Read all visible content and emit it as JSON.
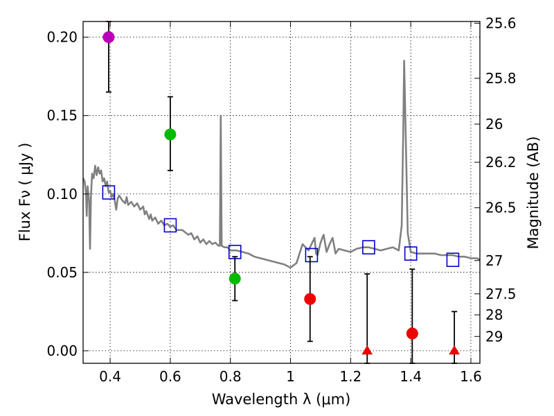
{
  "chart_data": {
    "type": "scatter",
    "title": "",
    "xlabel": "Wavelength  λ (μm)",
    "ylabel": "Flux  Fν ( μJy )",
    "y2label": "Magnitude (AB)",
    "xlim": [
      0.31,
      1.63
    ],
    "ylim": [
      -0.008,
      0.21
    ],
    "grid": true,
    "xticks": [
      0.4,
      0.6,
      0.8,
      1.0,
      1.2,
      1.4,
      1.6
    ],
    "xtick_labels": [
      "0.4",
      "0.6",
      "0.8",
      "1",
      "1.2",
      "1.4",
      "1.6"
    ],
    "yticks": [
      0.0,
      0.05,
      0.1,
      0.15,
      0.2
    ],
    "ytick_labels": [
      "0.00",
      "0.05",
      "0.10",
      "0.15",
      "0.20"
    ],
    "y2ticks": [
      25.6,
      25.8,
      26,
      26.2,
      26.5,
      27,
      27.5,
      28,
      29
    ],
    "y2tick_labels": [
      "25.6",
      "25.8",
      "26",
      "26.2",
      "26.5",
      "27",
      "27.5",
      "28",
      "29"
    ],
    "model_color": "#808080",
    "model_spectrum": [
      [
        0.31,
        0.11
      ],
      [
        0.315,
        0.108
      ],
      [
        0.32,
        0.1
      ],
      [
        0.322,
        0.086
      ],
      [
        0.325,
        0.105
      ],
      [
        0.33,
        0.095
      ],
      [
        0.333,
        0.065
      ],
      [
        0.336,
        0.098
      ],
      [
        0.34,
        0.113
      ],
      [
        0.345,
        0.11
      ],
      [
        0.35,
        0.118
      ],
      [
        0.355,
        0.112
      ],
      [
        0.36,
        0.117
      ],
      [
        0.365,
        0.113
      ],
      [
        0.37,
        0.115
      ],
      [
        0.375,
        0.108
      ],
      [
        0.38,
        0.11
      ],
      [
        0.385,
        0.105
      ],
      [
        0.39,
        0.108
      ],
      [
        0.395,
        0.101
      ],
      [
        0.4,
        0.102
      ],
      [
        0.405,
        0.098
      ],
      [
        0.41,
        0.1
      ],
      [
        0.415,
        0.096
      ],
      [
        0.42,
        0.09
      ],
      [
        0.425,
        0.097
      ],
      [
        0.43,
        0.099
      ],
      [
        0.44,
        0.096
      ],
      [
        0.45,
        0.094
      ],
      [
        0.455,
        0.098
      ],
      [
        0.46,
        0.093
      ],
      [
        0.47,
        0.095
      ],
      [
        0.48,
        0.092
      ],
      [
        0.49,
        0.094
      ],
      [
        0.5,
        0.09
      ],
      [
        0.51,
        0.092
      ],
      [
        0.515,
        0.087
      ],
      [
        0.52,
        0.089
      ],
      [
        0.53,
        0.084
      ],
      [
        0.535,
        0.087
      ],
      [
        0.54,
        0.083
      ],
      [
        0.55,
        0.085
      ],
      [
        0.56,
        0.081
      ],
      [
        0.57,
        0.083
      ],
      [
        0.58,
        0.08
      ],
      [
        0.59,
        0.081
      ],
      [
        0.6,
        0.079
      ],
      [
        0.61,
        0.08
      ],
      [
        0.62,
        0.077
      ],
      [
        0.64,
        0.077
      ],
      [
        0.66,
        0.074
      ],
      [
        0.67,
        0.075
      ],
      [
        0.68,
        0.071
      ],
      [
        0.69,
        0.073
      ],
      [
        0.7,
        0.069
      ],
      [
        0.71,
        0.071
      ],
      [
        0.72,
        0.068
      ],
      [
        0.73,
        0.07
      ],
      [
        0.74,
        0.068
      ],
      [
        0.75,
        0.069
      ],
      [
        0.76,
        0.067
      ],
      [
        0.765,
        0.067
      ],
      [
        0.768,
        0.15
      ],
      [
        0.771,
        0.067
      ],
      [
        0.78,
        0.066
      ],
      [
        0.79,
        0.066
      ],
      [
        0.8,
        0.064
      ],
      [
        0.82,
        0.064
      ],
      [
        0.84,
        0.063
      ],
      [
        0.86,
        0.062
      ],
      [
        0.88,
        0.06
      ],
      [
        0.9,
        0.059
      ],
      [
        0.92,
        0.058
      ],
      [
        0.94,
        0.057
      ],
      [
        0.96,
        0.056
      ],
      [
        0.98,
        0.055
      ],
      [
        1.0,
        0.053
      ],
      [
        1.02,
        0.056
      ],
      [
        1.04,
        0.068
      ],
      [
        1.05,
        0.066
      ],
      [
        1.06,
        0.064
      ],
      [
        1.07,
        0.068
      ],
      [
        1.08,
        0.072
      ],
      [
        1.085,
        0.062
      ],
      [
        1.09,
        0.061
      ],
      [
        1.1,
        0.069
      ],
      [
        1.11,
        0.074
      ],
      [
        1.12,
        0.063
      ],
      [
        1.13,
        0.068
      ],
      [
        1.14,
        0.072
      ],
      [
        1.15,
        0.062
      ],
      [
        1.16,
        0.065
      ],
      [
        1.18,
        0.064
      ],
      [
        1.2,
        0.063
      ],
      [
        1.22,
        0.065
      ],
      [
        1.24,
        0.066
      ],
      [
        1.26,
        0.066
      ],
      [
        1.28,
        0.065
      ],
      [
        1.3,
        0.064
      ],
      [
        1.32,
        0.065
      ],
      [
        1.34,
        0.066
      ],
      [
        1.35,
        0.065
      ],
      [
        1.36,
        0.064
      ],
      [
        1.37,
        0.08
      ],
      [
        1.375,
        0.14
      ],
      [
        1.378,
        0.185
      ],
      [
        1.382,
        0.15
      ],
      [
        1.39,
        0.075
      ],
      [
        1.4,
        0.063
      ],
      [
        1.42,
        0.062
      ],
      [
        1.44,
        0.062
      ],
      [
        1.46,
        0.062
      ],
      [
        1.48,
        0.062
      ],
      [
        1.5,
        0.061
      ],
      [
        1.52,
        0.061
      ],
      [
        1.54,
        0.061
      ],
      [
        1.56,
        0.06
      ],
      [
        1.58,
        0.06
      ],
      [
        1.6,
        0.059
      ],
      [
        1.62,
        0.059
      ],
      [
        1.63,
        0.058
      ]
    ],
    "model_photometry": {
      "marker": "open-square",
      "color": "#0000cc",
      "points": [
        [
          0.395,
          0.101
        ],
        [
          0.6,
          0.08
        ],
        [
          0.815,
          0.063
        ],
        [
          1.07,
          0.061
        ],
        [
          1.26,
          0.066
        ],
        [
          1.4,
          0.062
        ],
        [
          1.54,
          0.058
        ]
      ]
    },
    "observed_photometry": [
      {
        "x": 0.395,
        "y": 0.2,
        "err_low": 0.035,
        "err_high": 0.012,
        "color": "#bb00bb",
        "marker": "circle"
      },
      {
        "x": 0.6,
        "y": 0.138,
        "err_low": 0.023,
        "err_high": 0.024,
        "color": "#00bb00",
        "marker": "circle"
      },
      {
        "x": 0.815,
        "y": 0.046,
        "err_low": 0.014,
        "err_high": 0.014,
        "color": "#00bb00",
        "marker": "circle"
      },
      {
        "x": 1.065,
        "y": 0.033,
        "err_low": 0.027,
        "err_high": 0.027,
        "color": "#ee0000",
        "marker": "circle"
      },
      {
        "x": 1.405,
        "y": 0.011,
        "err_low": 0.02,
        "err_high": 0.041,
        "color": "#ee0000",
        "marker": "circle"
      }
    ],
    "upper_limits": [
      {
        "x": 1.255,
        "y": 0.0,
        "err_high": 0.049,
        "color": "#ee0000",
        "marker": "triangle"
      },
      {
        "x": 1.545,
        "y": 0.0,
        "err_high": 0.025,
        "color": "#ee0000",
        "marker": "triangle"
      }
    ]
  }
}
